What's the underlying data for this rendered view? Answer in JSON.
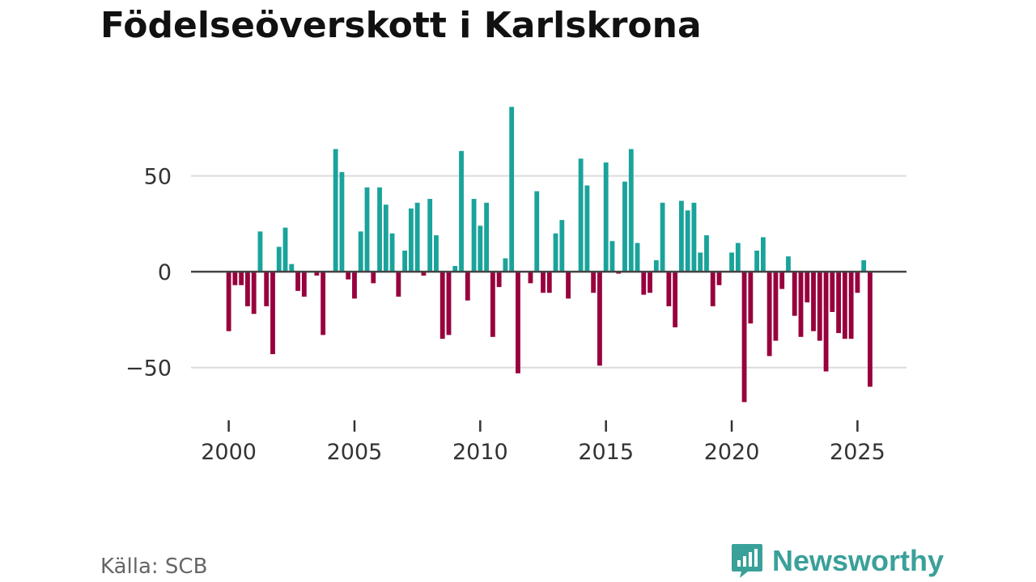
{
  "header": {
    "title": "Födelseöverskott i Karlskrona"
  },
  "footer": {
    "source": "Källa: SCB",
    "brand": "Newsworthy"
  },
  "colors": {
    "positive": "#1aa39b",
    "negative": "#98003e",
    "grid": "#dcdcdc",
    "zero": "#444444",
    "text": "#333333",
    "brand": "#3aa09a"
  },
  "chart_data": {
    "type": "bar",
    "title": "Födelseöverskott i Karlskrona",
    "xlabel": "",
    "ylabel": "",
    "ylim": [
      -75,
      92
    ],
    "xlim": [
      1998.5,
      2026.95
    ],
    "yticks": [
      50,
      0,
      -50
    ],
    "ytick_labels": [
      "50",
      "0",
      "−50"
    ],
    "xticks": [
      2000,
      2005,
      2010,
      2015,
      2020,
      2025
    ],
    "xtick_labels": [
      "2000",
      "2005",
      "2010",
      "2015",
      "2020",
      "2025"
    ],
    "grid": true,
    "start_year": 2000,
    "periods_per_year": 4,
    "values": [
      -31,
      -7,
      -7,
      -18,
      -22,
      21,
      -18,
      -43,
      13,
      23,
      4,
      -10,
      -13,
      0,
      -2,
      -33,
      0,
      64,
      52,
      -4,
      -14,
      21,
      44,
      -6,
      44,
      35,
      20,
      -13,
      11,
      33,
      36,
      -2,
      38,
      19,
      -35,
      -33,
      3,
      63,
      -15,
      38,
      24,
      36,
      -34,
      -8,
      7,
      86,
      -53,
      0,
      -6,
      42,
      -11,
      -11,
      20,
      27,
      -14,
      0,
      59,
      45,
      -11,
      -49,
      57,
      16,
      -1,
      47,
      64,
      15,
      -12,
      -11,
      6,
      36,
      -18,
      -29,
      37,
      32,
      36,
      10,
      19,
      -18,
      -7,
      0,
      10,
      15,
      -68,
      -27,
      11,
      18,
      -44,
      -36,
      -9,
      8,
      -23,
      -34,
      -16,
      -31,
      -36,
      -52,
      -21,
      -32,
      -35,
      -35,
      -11,
      6,
      -60
    ]
  }
}
